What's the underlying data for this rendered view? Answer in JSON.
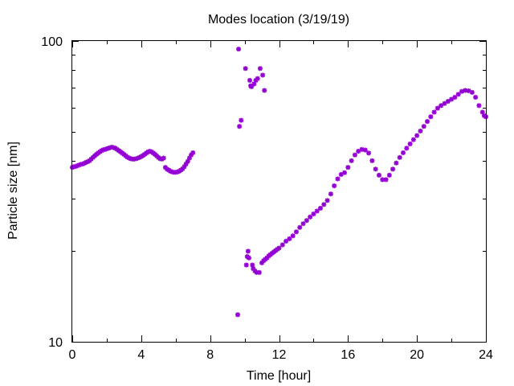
{
  "chart_data": {
    "type": "scatter",
    "title": "Modes location (3/19/19)",
    "xlabel": "Time [hour]",
    "ylabel": "Particle size [nm]",
    "xlim": [
      0,
      24
    ],
    "ylim": [
      10,
      100
    ],
    "yscale": "log",
    "x_ticks": [
      0,
      4,
      8,
      12,
      16,
      20,
      24
    ],
    "x_tick_labels": [
      "0",
      "4",
      "8",
      "12",
      "16",
      "20",
      "24"
    ],
    "y_tick_labels": [
      {
        "value": 10,
        "label": "10"
      },
      {
        "value": 100,
        "label": "100"
      }
    ],
    "marker_color": "#9400d3",
    "marker": "asterisk",
    "grid": false,
    "legend": "none",
    "series": [
      {
        "points": [
          [
            0.0,
            38.0
          ],
          [
            0.1,
            38.2
          ],
          [
            0.2,
            38.3
          ],
          [
            0.3,
            38.5
          ],
          [
            0.4,
            38.7
          ],
          [
            0.5,
            38.9
          ],
          [
            0.6,
            39.0
          ],
          [
            0.7,
            39.2
          ],
          [
            0.8,
            39.5
          ],
          [
            0.9,
            39.7
          ],
          [
            1.0,
            40.0
          ],
          [
            1.1,
            40.5
          ],
          [
            1.2,
            41.0
          ],
          [
            1.3,
            41.5
          ],
          [
            1.4,
            42.0
          ],
          [
            1.5,
            42.4
          ],
          [
            1.6,
            42.8
          ],
          [
            1.7,
            43.2
          ],
          [
            1.8,
            43.5
          ],
          [
            1.9,
            43.6
          ],
          [
            2.0,
            43.8
          ],
          [
            2.1,
            44.0
          ],
          [
            2.2,
            44.2
          ],
          [
            2.3,
            44.4
          ],
          [
            2.4,
            44.2
          ],
          [
            2.5,
            44.0
          ],
          [
            2.6,
            43.6
          ],
          [
            2.7,
            43.2
          ],
          [
            2.8,
            42.8
          ],
          [
            2.9,
            42.4
          ],
          [
            3.0,
            42.0
          ],
          [
            3.1,
            41.5
          ],
          [
            3.2,
            41.1
          ],
          [
            3.3,
            40.8
          ],
          [
            3.4,
            40.6
          ],
          [
            3.5,
            40.5
          ],
          [
            3.6,
            40.5
          ],
          [
            3.7,
            40.6
          ],
          [
            3.8,
            40.8
          ],
          [
            3.9,
            41.0
          ],
          [
            4.0,
            41.3
          ],
          [
            4.1,
            41.6
          ],
          [
            4.2,
            42.0
          ],
          [
            4.3,
            42.4
          ],
          [
            4.4,
            42.8
          ],
          [
            4.5,
            43.0
          ],
          [
            4.6,
            42.8
          ],
          [
            4.7,
            42.4
          ],
          [
            4.8,
            42.0
          ],
          [
            4.9,
            41.5
          ],
          [
            5.0,
            41.0
          ],
          [
            5.1,
            40.6
          ],
          [
            5.2,
            40.5
          ],
          [
            5.3,
            40.8
          ],
          [
            5.4,
            38.0
          ],
          [
            5.5,
            37.5
          ],
          [
            5.6,
            37.2
          ],
          [
            5.7,
            36.9
          ],
          [
            5.8,
            36.7
          ],
          [
            5.9,
            36.6
          ],
          [
            6.0,
            36.6
          ],
          [
            6.1,
            36.7
          ],
          [
            6.2,
            36.9
          ],
          [
            6.3,
            37.2
          ],
          [
            6.4,
            37.6
          ],
          [
            6.5,
            38.2
          ],
          [
            6.6,
            39.0
          ],
          [
            6.7,
            39.8
          ],
          [
            6.8,
            40.8
          ],
          [
            6.9,
            41.8
          ],
          [
            7.0,
            42.5
          ],
          [
            9.6,
            12.3
          ],
          [
            9.65,
            94.0
          ],
          [
            9.7,
            52.0
          ],
          [
            9.8,
            54.5
          ],
          [
            10.05,
            81.0
          ],
          [
            10.1,
            18.0
          ],
          [
            10.15,
            19.2
          ],
          [
            10.2,
            20.0
          ],
          [
            10.25,
            19.0
          ],
          [
            10.3,
            74.0
          ],
          [
            10.35,
            71.0
          ],
          [
            10.4,
            70.5
          ],
          [
            10.45,
            18.0
          ],
          [
            10.5,
            17.5
          ],
          [
            10.55,
            72.0
          ],
          [
            10.6,
            17.2
          ],
          [
            10.65,
            74.0
          ],
          [
            10.7,
            17.0
          ],
          [
            10.75,
            75.0
          ],
          [
            10.85,
            17.0
          ],
          [
            10.9,
            81.0
          ],
          [
            11.0,
            18.3
          ],
          [
            11.05,
            77.0
          ],
          [
            11.1,
            18.6
          ],
          [
            11.15,
            68.5
          ],
          [
            11.2,
            18.8
          ],
          [
            11.3,
            19.0
          ],
          [
            11.4,
            19.3
          ],
          [
            11.5,
            19.5
          ],
          [
            11.6,
            19.7
          ],
          [
            11.7,
            19.9
          ],
          [
            11.8,
            20.1
          ],
          [
            11.9,
            20.3
          ],
          [
            12.0,
            20.5
          ],
          [
            12.2,
            21.0
          ],
          [
            12.4,
            21.6
          ],
          [
            12.6,
            22.0
          ],
          [
            12.8,
            22.5
          ],
          [
            13.0,
            23.2
          ],
          [
            13.2,
            24.0
          ],
          [
            13.4,
            24.7
          ],
          [
            13.6,
            25.3
          ],
          [
            13.8,
            26.0
          ],
          [
            14.0,
            26.6
          ],
          [
            14.2,
            27.2
          ],
          [
            14.4,
            27.8
          ],
          [
            14.6,
            28.6
          ],
          [
            14.8,
            29.5
          ],
          [
            15.0,
            31.0
          ],
          [
            15.2,
            33.0
          ],
          [
            15.4,
            34.8
          ],
          [
            15.6,
            36.0
          ],
          [
            15.8,
            36.5
          ],
          [
            16.0,
            38.0
          ],
          [
            16.2,
            40.0
          ],
          [
            16.4,
            41.8
          ],
          [
            16.6,
            43.0
          ],
          [
            16.8,
            43.6
          ],
          [
            17.0,
            43.4
          ],
          [
            17.2,
            42.4
          ],
          [
            17.4,
            40.0
          ],
          [
            17.6,
            37.5
          ],
          [
            17.8,
            35.8
          ],
          [
            18.0,
            34.6
          ],
          [
            18.2,
            34.6
          ],
          [
            18.4,
            35.8
          ],
          [
            18.6,
            37.5
          ],
          [
            18.8,
            39.3
          ],
          [
            19.0,
            41.0
          ],
          [
            19.2,
            42.5
          ],
          [
            19.4,
            44.0
          ],
          [
            19.6,
            45.5
          ],
          [
            19.8,
            47.0
          ],
          [
            20.0,
            48.5
          ],
          [
            20.2,
            50.2
          ],
          [
            20.4,
            52.0
          ],
          [
            20.6,
            54.0
          ],
          [
            20.8,
            56.0
          ],
          [
            21.0,
            58.0
          ],
          [
            21.2,
            59.8
          ],
          [
            21.4,
            61.0
          ],
          [
            21.6,
            62.0
          ],
          [
            21.8,
            63.0
          ],
          [
            22.0,
            64.0
          ],
          [
            22.2,
            65.0
          ],
          [
            22.4,
            66.5
          ],
          [
            22.6,
            68.0
          ],
          [
            22.8,
            68.5
          ],
          [
            23.0,
            68.3
          ],
          [
            23.2,
            67.5
          ],
          [
            23.4,
            65.0
          ],
          [
            23.6,
            61.0
          ],
          [
            23.8,
            58.0
          ],
          [
            23.9,
            56.5
          ],
          [
            24.0,
            56.0
          ]
        ]
      }
    ]
  }
}
